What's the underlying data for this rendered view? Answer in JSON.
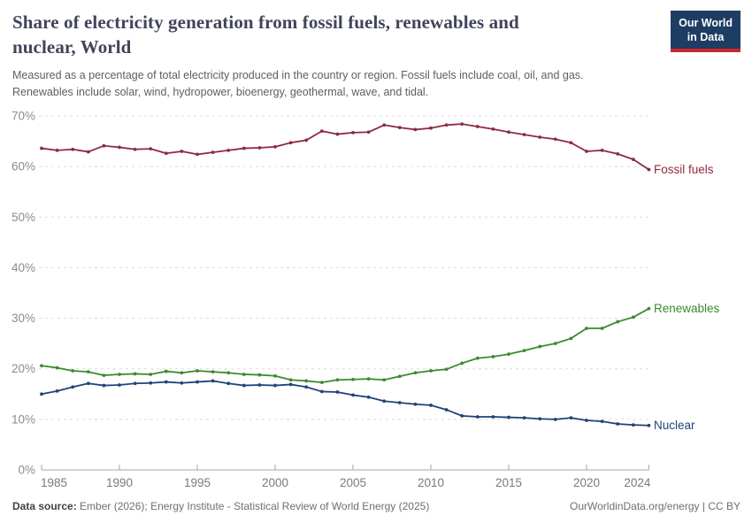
{
  "header": {
    "title": "Share of electricity generation from fossil fuels, renewables and\nnuclear, World",
    "subtitle": "Measured as a percentage of total electricity produced in the country or region. Fossil fuels include coal, oil, and gas.\nRenewables include solar, wind, hydropower, bioenergy, geothermal, wave, and tidal.",
    "logo_text": "Our World\nin Data",
    "logo_bg_color": "#1d3d63",
    "logo_accent_color": "#c8282d"
  },
  "chart_data": {
    "type": "line",
    "title": "Share of electricity generation from fossil fuels, renewables and nuclear, World",
    "xlabel": "",
    "ylabel": "",
    "ylim": [
      0,
      70
    ],
    "yticks": [
      0,
      10,
      20,
      30,
      40,
      50,
      60,
      70
    ],
    "ytick_suffix": "%",
    "xticks": [
      1985,
      1990,
      1995,
      2000,
      2005,
      2010,
      2015,
      2020,
      2024
    ],
    "grid": "dashed-horizontal",
    "legend_position": "line-end-labels",
    "x": [
      1985,
      1986,
      1987,
      1988,
      1989,
      1990,
      1991,
      1992,
      1993,
      1994,
      1995,
      1996,
      1997,
      1998,
      1999,
      2000,
      2001,
      2002,
      2003,
      2004,
      2005,
      2006,
      2007,
      2008,
      2009,
      2010,
      2011,
      2012,
      2013,
      2014,
      2015,
      2016,
      2017,
      2018,
      2019,
      2020,
      2021,
      2022,
      2023,
      2024
    ],
    "series": [
      {
        "name": "Fossil fuels",
        "color": "#8e2b3e",
        "values": [
          63.6,
          63.2,
          63.4,
          62.9,
          64.1,
          63.8,
          63.4,
          63.5,
          62.6,
          63.0,
          62.4,
          62.8,
          63.2,
          63.6,
          63.7,
          63.9,
          64.7,
          65.2,
          67.0,
          66.4,
          66.7,
          66.8,
          68.2,
          67.7,
          67.3,
          67.6,
          68.2,
          68.4,
          67.9,
          67.4,
          66.8,
          66.3,
          65.8,
          65.4,
          64.7,
          63.0,
          63.2,
          62.5,
          61.4,
          59.4
        ]
      },
      {
        "name": "Renewables",
        "color": "#3c8a2e",
        "values": [
          20.6,
          20.2,
          19.6,
          19.4,
          18.7,
          18.9,
          19.0,
          18.9,
          19.5,
          19.2,
          19.6,
          19.4,
          19.2,
          18.9,
          18.8,
          18.6,
          17.8,
          17.6,
          17.3,
          17.8,
          17.9,
          18.0,
          17.8,
          18.5,
          19.2,
          19.6,
          19.9,
          21.1,
          22.1,
          22.4,
          22.9,
          23.6,
          24.4,
          25.0,
          26.0,
          28.0,
          28.0,
          29.3,
          30.2,
          31.9
        ]
      },
      {
        "name": "Nuclear",
        "color": "#1e4477",
        "values": [
          15.0,
          15.6,
          16.4,
          17.1,
          16.7,
          16.8,
          17.1,
          17.2,
          17.4,
          17.2,
          17.4,
          17.6,
          17.1,
          16.7,
          16.8,
          16.7,
          16.9,
          16.4,
          15.5,
          15.4,
          14.8,
          14.4,
          13.6,
          13.3,
          13.0,
          12.8,
          11.9,
          10.7,
          10.5,
          10.5,
          10.4,
          10.3,
          10.1,
          10.0,
          10.3,
          9.8,
          9.6,
          9.1,
          8.9,
          8.8
        ]
      }
    ]
  },
  "footer": {
    "source_label": "Data source:",
    "source_text": " Ember (2026); Energy Institute - Statistical Review of World Energy (2025)",
    "credit": "OurWorldinData.org/energy | CC BY"
  }
}
